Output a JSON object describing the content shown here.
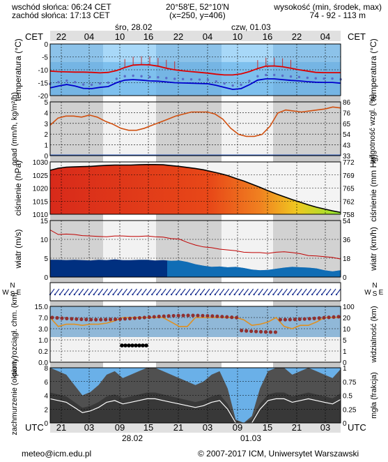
{
  "header": {
    "sunrise": "wschód słońca: 06:24 CET",
    "sunset": "zachód słońca: 17:13 CET",
    "coords": "20°58'E, 52°10'N",
    "grid": "(x=250, y=406)",
    "elevation_label": "wysokość (min, środek, max)",
    "elevation_values": "74 - 92 - 113 m"
  },
  "timeline": {
    "tz_top": "CET",
    "tz_bottom": "UTC",
    "day1": "śro, 28.02",
    "day2": "czw, 01.03",
    "top_hours": [
      "22",
      "04",
      "10",
      "16",
      "22",
      "04",
      "10",
      "16",
      "22",
      "04"
    ],
    "bottom_hours": [
      "21",
      "03",
      "09",
      "15",
      "21",
      "03",
      "09",
      "15",
      "21",
      "03"
    ],
    "date1": "28.02",
    "date2": "01.03"
  },
  "panels": {
    "temp": {
      "ylabel": "temperatura (°C)",
      "ticks": [
        "0",
        "-5",
        "-10",
        "-15",
        "-20"
      ]
    },
    "rain": {
      "ylabel_left": "opad (mm/h, kg/m²/h)",
      "ylabel_right": "wilgotność wzgl. (%)",
      "ticks_left": [
        "5",
        "4",
        "3",
        "2",
        "1",
        "0"
      ],
      "ticks_right": [
        "86",
        "76",
        "65",
        "54",
        "43",
        "33"
      ]
    },
    "pres": {
      "ylabel_left": "ciśnienie (hPa)",
      "ylabel_right": "ciśnienie (mm Hg)",
      "ticks_left": [
        "1030",
        "1025",
        "1020",
        "1015",
        "1010"
      ],
      "ticks_right": [
        "772",
        "769",
        "765",
        "762",
        "758"
      ]
    },
    "wind": {
      "ylabel_left": "wiatr (m/s)",
      "ylabel_right": "wiatr (km/h)",
      "ticks_left": [
        "15",
        "10",
        "5",
        "0"
      ],
      "ticks_right": [
        "54",
        "36",
        "18",
        "0"
      ]
    },
    "dir": {
      "compass_n": "N",
      "compass_s": "S",
      "compass_w": "W",
      "compass_e": "E"
    },
    "vis": {
      "ylabel_left": "pion. rozciągł. chm. (km)",
      "ylabel_right": "widzialność (km)",
      "ticks_left": [
        "15.0",
        "7.0",
        "3.0",
        "1.0",
        "0.2",
        "0.0"
      ],
      "ticks_right": [
        "100",
        "20",
        "10",
        "5",
        "1",
        "0"
      ]
    },
    "cloud": {
      "ylabel_left": "zachmurzenie (oktanty)",
      "ylabel_right": "mgła (frakcja)",
      "ticks_left": [
        "8",
        "6",
        "4",
        "2",
        "0"
      ],
      "ticks_right": [
        "1",
        "0.75",
        "0.5",
        "0.25",
        "0"
      ]
    }
  },
  "footer": {
    "email": "meteo@icm.edu.pl",
    "copyright": "© 2007-2017 ICM, Uniwersytet Warszawski"
  },
  "colors": {
    "temp_line": "#dd0000",
    "dew_line": "#0000cc",
    "rh_line": "#d05010",
    "wind_fill": "#003080",
    "cloud_fill": "#505050"
  },
  "chart_data": [
    {
      "type": "line",
      "name": "temperature",
      "ylim": [
        -20,
        0
      ],
      "series": [
        {
          "values": [
            -10.5,
            -10.7,
            -10.8,
            -10.9,
            -10.9,
            -11.0,
            -11.2,
            -11.0,
            -10.3,
            -9.1,
            -8.2,
            -8.0,
            -8.1,
            -8.6,
            -9.4,
            -10.0,
            -10.4,
            -10.7,
            -11.0,
            -11.3,
            -11.7,
            -12.0,
            -12.0,
            -11.6,
            -10.7,
            -9.5,
            -8.6,
            -8.5,
            -8.8,
            -9.4,
            -10.0,
            -10.5,
            -11.0,
            -11.1,
            -11.1,
            -11.1
          ]
        },
        {
          "values": [
            -17.0,
            -16.3,
            -15.7,
            -16.3,
            -17.2,
            -17.3,
            -16.8,
            -16.5,
            -15.0,
            -14.0,
            -13.8,
            -14.0,
            -14.3,
            -14.4,
            -14.7,
            -15.0,
            -15.1,
            -15.2,
            -15.3,
            -15.4,
            -16.0,
            -16.8,
            -17.6,
            -17.3,
            -15.8,
            -14.0,
            -13.5,
            -13.5,
            -13.8,
            -14.1,
            -14.3,
            -14.6,
            -14.8,
            -14.9,
            -14.9,
            -15.2
          ]
        }
      ]
    },
    {
      "type": "line",
      "name": "humidity",
      "ylim": [
        33,
        86
      ],
      "values": [
        63,
        70,
        72,
        72,
        71,
        73,
        71,
        67,
        64,
        60,
        58,
        58,
        60,
        63,
        66,
        69,
        72,
        74,
        76,
        76,
        76,
        74,
        69,
        60,
        54,
        52,
        52,
        54,
        62,
        75,
        78,
        77,
        76,
        77,
        78,
        79,
        81,
        80
      ]
    },
    {
      "type": "area",
      "name": "pressure",
      "ylim": [
        1010,
        1030
      ],
      "values": [
        1026.8,
        1027.6,
        1028.0,
        1028.1,
        1028.2,
        1028.3,
        1028.5,
        1028.7,
        1028.8,
        1028.8,
        1028.8,
        1028.9,
        1029.0,
        1029.0,
        1028.9,
        1028.6,
        1028.3,
        1027.9,
        1027.5,
        1027.0,
        1026.3,
        1025.6,
        1024.8,
        1023.7,
        1022.7,
        1021.5,
        1020.3,
        1019.0,
        1017.8,
        1016.7,
        1015.6,
        1014.6,
        1013.6,
        1012.7,
        1012.0,
        1011.3,
        1010.7
      ]
    },
    {
      "type": "area",
      "name": "wind",
      "ylim": [
        0,
        15
      ],
      "values": [
        4.6,
        4.6,
        4.5,
        4.6,
        4.5,
        4.4,
        4.6,
        4.5,
        4.7,
        4.5,
        4.5,
        4.6,
        4.6,
        4.4,
        4.5,
        4.3,
        4.4,
        4.0,
        3.4,
        3.0,
        2.7,
        2.8,
        2.6,
        2.7,
        2.4,
        2.0,
        1.8,
        1.9,
        2.2,
        2.5,
        2.7,
        2.6,
        2.5,
        2.3,
        1.8,
        1.5,
        1.8
      ],
      "gust_values": [
        12.5,
        11.3,
        11.4,
        11.3,
        11.0,
        10.9,
        10.8,
        10.7,
        10.9,
        10.9,
        10.8,
        10.8,
        10.9,
        10.7,
        10.6,
        10.2,
        10.1,
        9.2,
        8.5,
        8.0,
        7.8,
        7.4,
        7.2,
        7.0,
        6.6,
        6.5,
        6.5,
        6.3,
        6.6,
        6.7,
        6.5,
        6.2,
        5.7,
        5.6,
        5.4,
        5.2,
        4.8
      ]
    },
    {
      "type": "line",
      "name": "visibility",
      "ylim": [
        0,
        100
      ],
      "values": [
        20,
        12,
        14,
        14,
        13,
        14,
        14,
        15,
        17,
        20,
        20,
        20,
        20,
        20,
        20,
        16,
        12,
        12,
        20,
        20,
        20,
        20,
        20,
        20,
        18,
        13,
        14,
        16,
        20,
        12,
        10,
        13,
        13,
        16,
        20,
        20,
        20
      ]
    },
    {
      "type": "area",
      "name": "cloud",
      "ylim": [
        0,
        8
      ],
      "values": [
        8,
        7.5,
        7,
        5.5,
        4,
        4.5,
        5.5,
        7,
        7.5,
        6.5,
        7,
        7.5,
        8,
        8,
        7.5,
        7,
        6.5,
        6,
        5.5,
        6,
        7,
        7.5,
        5,
        0.5,
        0,
        1,
        5,
        7.5,
        8,
        8,
        7,
        7.5,
        8,
        7.5,
        7,
        6.5,
        7.8
      ]
    }
  ]
}
